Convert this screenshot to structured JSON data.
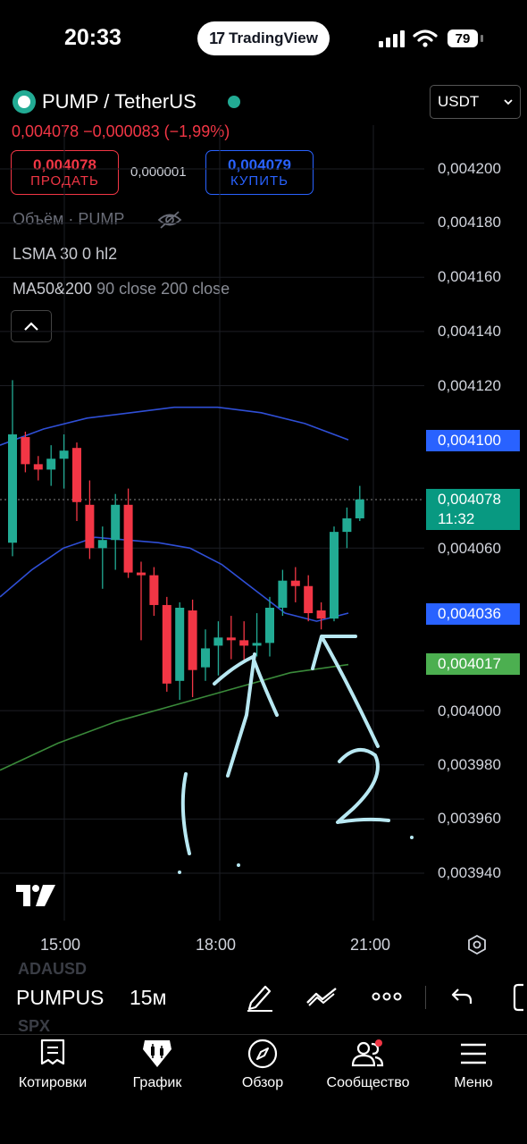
{
  "status_bar": {
    "time": "20:33",
    "battery": "79",
    "pill_label": "TradingView",
    "pill_logo": "17"
  },
  "header": {
    "symbol_title": "PUMP / TetherUS",
    "currency": "USDT",
    "price_line": "0,004078 −0,000083 (−1,99%)"
  },
  "trade": {
    "sell_price": "0,004078",
    "sell_label": "ПРОДАТЬ",
    "spread": "0,000001",
    "buy_price": "0,004079",
    "buy_label": "КУПИТЬ"
  },
  "studies": {
    "volume": "Объём · PUMP",
    "lsma": "LSMA 30 0 hl2",
    "ma": "MA50&200",
    "ma_params": "90 close 200 close"
  },
  "price_scale": {
    "ticks": [
      "0,004200",
      "0,004180",
      "0,004160",
      "0,004140",
      "0,004120",
      "0,004060",
      "0,004000",
      "0,003980",
      "0,003960",
      "0,003940"
    ],
    "badge_blue_top": "0,004100",
    "badge_current_price": "0,004078",
    "badge_current_timer": "11:32",
    "badge_blue_low": "0,004036",
    "badge_green": "0,004017"
  },
  "time_axis": {
    "ticks": [
      "15:00",
      "18:00",
      "21:00"
    ]
  },
  "annotations": {
    "mark_1": "1",
    "mark_2": "2"
  },
  "toolbar": {
    "symbol": "PUMPUS",
    "interval": "15м",
    "ghost_above": "ADAUSD",
    "ghost_below": "SPX"
  },
  "nav": {
    "quotes": "Котировки",
    "chart": "График",
    "overview": "Обзор",
    "community": "Сообщество",
    "menu": "Меню"
  },
  "colors": {
    "up": "#22ab94",
    "down": "#f23645",
    "blue": "#2962ff",
    "ma_fast": "#2f4fd6",
    "ma_slow": "#3a8a3a",
    "drawing": "#b8e8f2"
  },
  "chart_data": {
    "type": "candlestick",
    "timeframe": "15м",
    "x_ticks": [
      "15:00",
      "18:00",
      "21:00"
    ],
    "y_ticks": [
      0.00394,
      0.00396,
      0.00398,
      0.004,
      0.00406,
      0.00412,
      0.00414,
      0.00416,
      0.00418,
      0.0042
    ],
    "ylim": [
      0.00393,
      0.00421
    ],
    "candles": [
      {
        "o": 0.004062,
        "h": 0.004122,
        "l": 0.004057,
        "c": 0.004102
      },
      {
        "o": 0.004101,
        "h": 0.004103,
        "l": 0.004088,
        "c": 0.004091
      },
      {
        "o": 0.004091,
        "h": 0.004094,
        "l": 0.004085,
        "c": 0.004089
      },
      {
        "o": 0.004089,
        "h": 0.004098,
        "l": 0.004083,
        "c": 0.004093
      },
      {
        "o": 0.004093,
        "h": 0.004102,
        "l": 0.004082,
        "c": 0.004096
      },
      {
        "o": 0.004097,
        "h": 0.004099,
        "l": 0.00407,
        "c": 0.004077
      },
      {
        "o": 0.004076,
        "h": 0.004085,
        "l": 0.004056,
        "c": 0.00406
      },
      {
        "o": 0.00406,
        "h": 0.004068,
        "l": 0.004045,
        "c": 0.004063
      },
      {
        "o": 0.004063,
        "h": 0.00408,
        "l": 0.004052,
        "c": 0.004076
      },
      {
        "o": 0.004076,
        "h": 0.004082,
        "l": 0.004049,
        "c": 0.004051
      },
      {
        "o": 0.004051,
        "h": 0.004055,
        "l": 0.004026,
        "c": 0.00405
      },
      {
        "o": 0.00405,
        "h": 0.004053,
        "l": 0.004035,
        "c": 0.004039
      },
      {
        "o": 0.004039,
        "h": 0.004042,
        "l": 0.004007,
        "c": 0.00401
      },
      {
        "o": 0.004011,
        "h": 0.00404,
        "l": 0.004004,
        "c": 0.004038
      },
      {
        "o": 0.004037,
        "h": 0.004041,
        "l": 0.004005,
        "c": 0.004015
      },
      {
        "o": 0.004016,
        "h": 0.00403,
        "l": 0.004011,
        "c": 0.004023
      },
      {
        "o": 0.004024,
        "h": 0.004033,
        "l": 0.004013,
        "c": 0.004027
      },
      {
        "o": 0.004027,
        "h": 0.004035,
        "l": 0.004019,
        "c": 0.004026
      },
      {
        "o": 0.004026,
        "h": 0.004033,
        "l": 0.004018,
        "c": 0.004024
      },
      {
        "o": 0.004024,
        "h": 0.004036,
        "l": 0.00402,
        "c": 0.004025
      },
      {
        "o": 0.004025,
        "h": 0.004042,
        "l": 0.00402,
        "c": 0.004038
      },
      {
        "o": 0.004038,
        "h": 0.004052,
        "l": 0.004035,
        "c": 0.004048
      },
      {
        "o": 0.004048,
        "h": 0.004053,
        "l": 0.00404,
        "c": 0.004046
      },
      {
        "o": 0.004046,
        "h": 0.00405,
        "l": 0.004033,
        "c": 0.004036
      },
      {
        "o": 0.004037,
        "h": 0.00404,
        "l": 0.00403,
        "c": 0.004034
      },
      {
        "o": 0.004034,
        "h": 0.004068,
        "l": 0.004033,
        "c": 0.004066
      },
      {
        "o": 0.004066,
        "h": 0.004075,
        "l": 0.00406,
        "c": 0.004071
      },
      {
        "o": 0.004071,
        "h": 0.004083,
        "l": 0.00407,
        "c": 0.004078
      }
    ],
    "lsma_series": [
      0.004042,
      0.004052,
      0.00406,
      0.004064,
      0.004063,
      0.004062,
      0.00406,
      0.004054,
      0.004045,
      0.004036,
      0.004033,
      0.004036
    ],
    "ma50_series": [
      0.004098,
      0.004104,
      0.004108,
      0.00411,
      0.004112,
      0.004112,
      0.00411,
      0.004106,
      0.0041
    ],
    "ma200_series": [
      0.003978,
      0.003988,
      0.003996,
      0.004002,
      0.004008,
      0.004014,
      0.004017
    ]
  }
}
